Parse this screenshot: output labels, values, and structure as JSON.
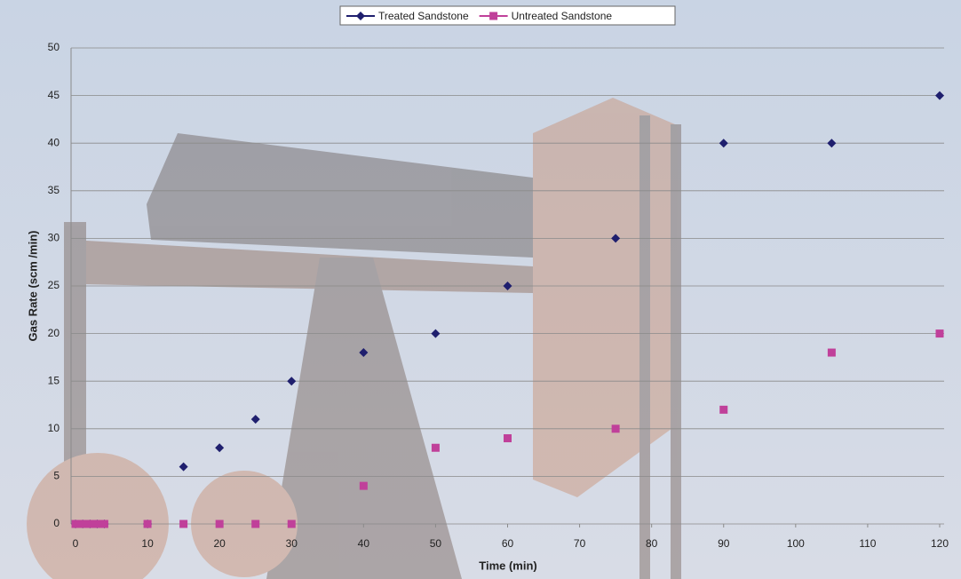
{
  "chart_data": {
    "type": "scatter",
    "xlabel": "Time (min)",
    "ylabel": "Gas Rate (scm /min)",
    "xlim": [
      0,
      120
    ],
    "xticks": [
      0,
      10,
      20,
      30,
      40,
      50,
      60,
      70,
      80,
      90,
      100,
      110,
      120
    ],
    "ylim": [
      0,
      50
    ],
    "yticks": [
      0,
      5,
      10,
      15,
      20,
      25,
      30,
      35,
      40,
      45,
      50
    ],
    "grid": true,
    "legend": "top",
    "series": [
      {
        "name": "Treated Sandstone",
        "color": "#1f1f6e",
        "marker": "diamond",
        "x": [
          0,
          1,
          2,
          3,
          4,
          10,
          15,
          20,
          25,
          30,
          40,
          50,
          60,
          75,
          90,
          105,
          120
        ],
        "values": [
          0,
          0,
          0,
          0,
          0,
          0,
          6,
          8,
          11,
          15,
          18,
          20,
          25,
          30,
          40,
          40,
          45
        ]
      },
      {
        "name": "Untreated Sandstone",
        "color": "#c0409a",
        "marker": "square",
        "x": [
          0,
          1,
          2,
          3,
          4,
          10,
          15,
          20,
          25,
          30,
          40,
          50,
          60,
          75,
          90,
          105,
          120
        ],
        "values": [
          0,
          0,
          0,
          0,
          0,
          0,
          0,
          0,
          0,
          0,
          4,
          8,
          9,
          10,
          12,
          18,
          20
        ]
      }
    ]
  }
}
